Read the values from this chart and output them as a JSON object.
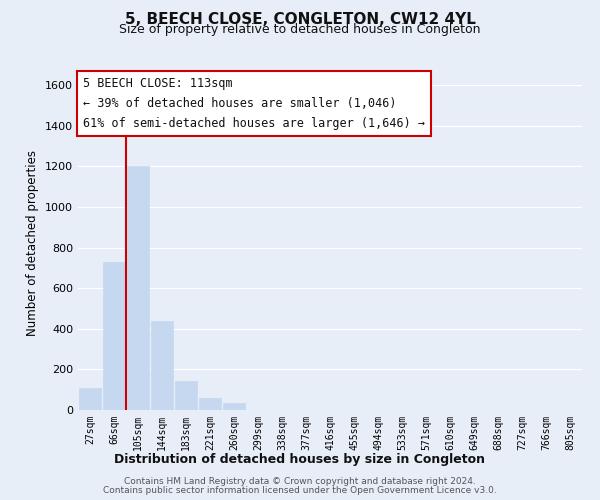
{
  "title": "5, BEECH CLOSE, CONGLETON, CW12 4YL",
  "subtitle": "Size of property relative to detached houses in Congleton",
  "xlabel": "Distribution of detached houses by size in Congleton",
  "ylabel": "Number of detached properties",
  "bar_labels": [
    "27sqm",
    "66sqm",
    "105sqm",
    "144sqm",
    "183sqm",
    "221sqm",
    "260sqm",
    "299sqm",
    "338sqm",
    "377sqm",
    "416sqm",
    "455sqm",
    "494sqm",
    "533sqm",
    "571sqm",
    "610sqm",
    "649sqm",
    "688sqm",
    "727sqm",
    "766sqm",
    "805sqm"
  ],
  "bar_values": [
    110,
    730,
    1200,
    440,
    145,
    60,
    35,
    0,
    0,
    0,
    0,
    0,
    0,
    0,
    0,
    0,
    0,
    0,
    0,
    0,
    0
  ],
  "bar_color": "#c5d8f0",
  "vline_x_index": 2,
  "vline_color": "#cc0000",
  "ylim": [
    0,
    1650
  ],
  "yticks": [
    0,
    200,
    400,
    600,
    800,
    1000,
    1200,
    1400,
    1600
  ],
  "annotation_title": "5 BEECH CLOSE: 113sqm",
  "annotation_line1": "← 39% of detached houses are smaller (1,046)",
  "annotation_line2": "61% of semi-detached houses are larger (1,646) →",
  "annotation_box_facecolor": "#ffffff",
  "annotation_box_edgecolor": "#cc0000",
  "footer_line1": "Contains HM Land Registry data © Crown copyright and database right 2024.",
  "footer_line2": "Contains public sector information licensed under the Open Government Licence v3.0.",
  "fig_bg_color": "#e8eef8",
  "plot_bg_color": "#e8eef8",
  "grid_color": "#ffffff"
}
